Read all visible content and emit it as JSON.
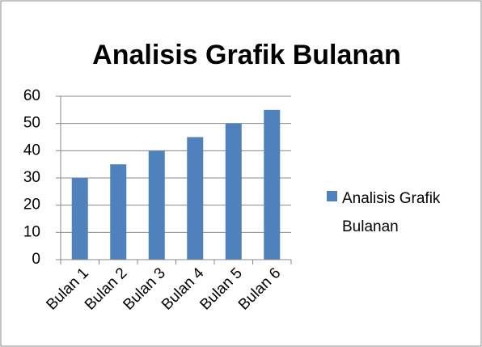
{
  "chart_data": {
    "type": "bar",
    "title": "Analisis Grafik Bulanan",
    "categories": [
      "Bulan 1",
      "Bulan 2",
      "Bulan 3",
      "Bulan 4",
      "Bulan 5",
      "Bulan 6"
    ],
    "series": [
      {
        "name": "Analisis Grafik Bulanan",
        "color": "#4f81bd",
        "values": [
          30,
          35,
          40,
          45,
          50,
          55
        ]
      }
    ],
    "ylim": [
      0,
      60
    ],
    "yticks": [
      0,
      10,
      20,
      30,
      40,
      50,
      60
    ],
    "grid": true,
    "legend": "right"
  }
}
